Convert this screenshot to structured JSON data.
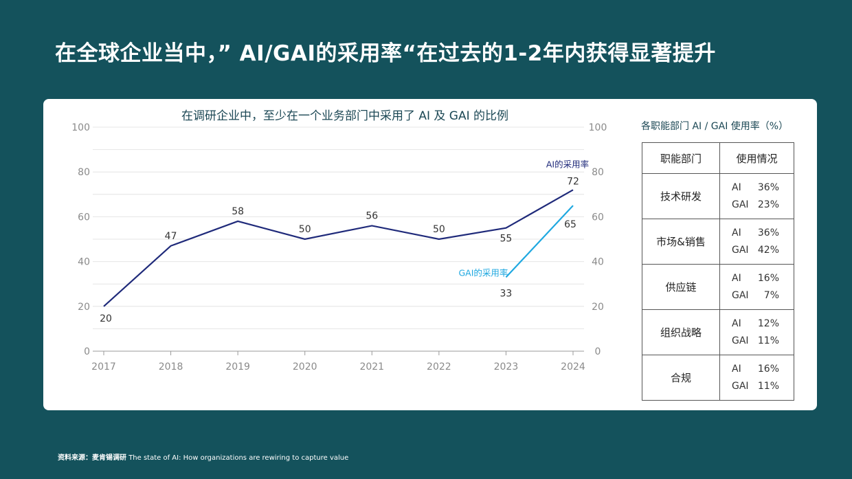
{
  "header": {
    "title": "在全球企业当中，” AI/GAI的采用率“在过去的1-2年内获得显著提升"
  },
  "chart_data": {
    "type": "line",
    "title": "在调研企业中，至少在一个业务部门中采用了 AI 及 GAI 的比例",
    "x": [
      "2017",
      "2018",
      "2019",
      "2020",
      "2021",
      "2022",
      "2023",
      "2024"
    ],
    "ylim": [
      0,
      100
    ],
    "yticks": [
      "0",
      "20",
      "40",
      "60",
      "80",
      "100"
    ],
    "grid": true,
    "series": [
      {
        "name": "AI的采用率",
        "color": "#1f2a7a",
        "values": [
          20,
          47,
          58,
          50,
          56,
          50,
          55,
          72
        ]
      },
      {
        "name": "GAI的采用率",
        "color": "#1fa8e0",
        "values": [
          null,
          null,
          null,
          null,
          null,
          null,
          33,
          65
        ]
      }
    ]
  },
  "table": {
    "title": "各职能部门 AI / GAI 使用率（%）",
    "col1_header": "职能部门",
    "col2_header": "使用情况",
    "rows": [
      {
        "dept": "技术研发",
        "ai_label": "AI",
        "ai": "36%",
        "gai_label": "GAI",
        "gai": "23%"
      },
      {
        "dept": "市场&销售",
        "ai_label": "AI",
        "ai": "36%",
        "gai_label": "GAI",
        "gai": "42%"
      },
      {
        "dept": "供应链",
        "ai_label": "AI",
        "ai": "16%",
        "gai_label": "GAI",
        "gai": "7%"
      },
      {
        "dept": "组织战略",
        "ai_label": "AI",
        "ai": "12%",
        "gai_label": "GAI",
        "gai": "11%"
      },
      {
        "dept": "合规",
        "ai_label": "AI",
        "ai": "16%",
        "gai_label": "GAI",
        "gai": "11%"
      }
    ]
  },
  "footer": {
    "source_label": "资料来源：麦肯锡调研",
    "source_text": "The state of AI: How organizations are rewiring to capture value"
  }
}
